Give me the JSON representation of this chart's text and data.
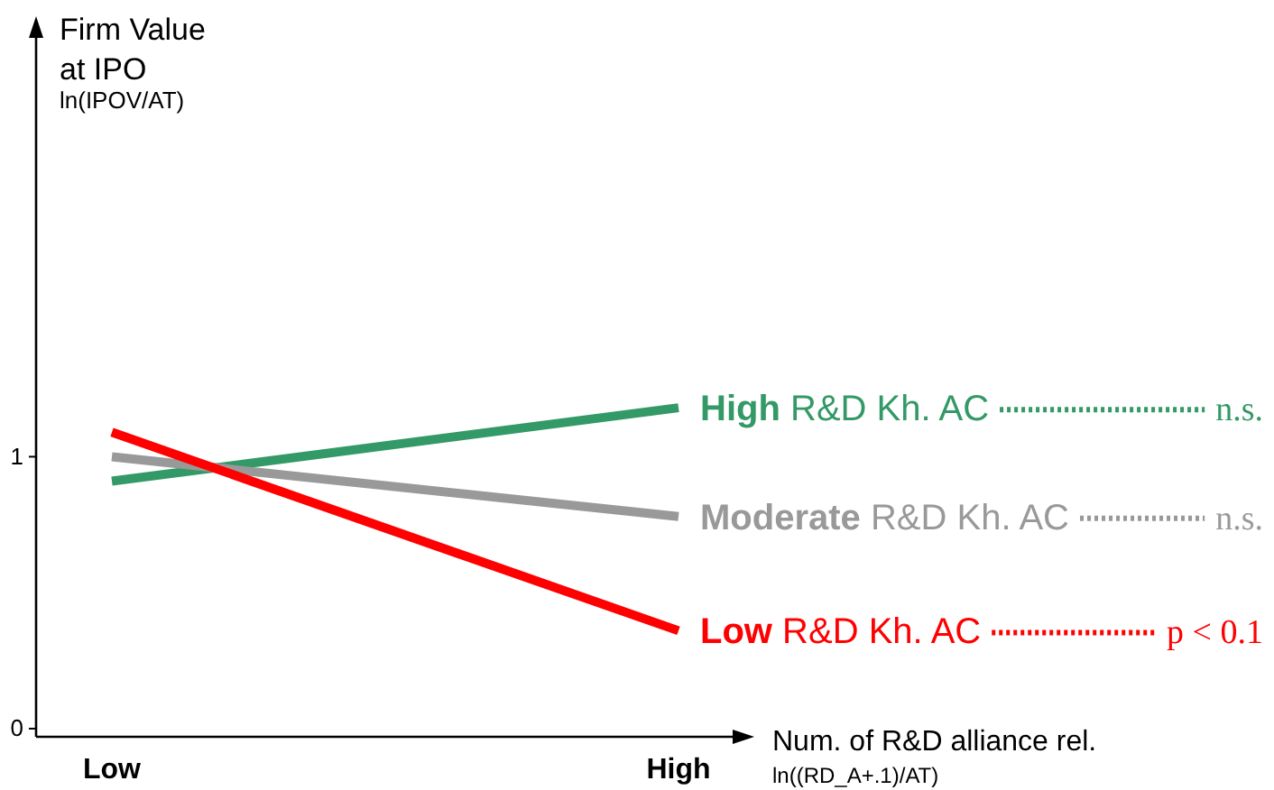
{
  "chart_data": {
    "type": "line",
    "categories": [
      "Low",
      "High"
    ],
    "ylabel": "Firm Value\nat IPO\nln(IPOV/AT)",
    "xlabel": "Num. of R&D alliance rel.\nln((RD_A+.1)/AT)",
    "ylim": [
      -0.03,
      2.6
    ],
    "yticks": [
      0,
      1
    ],
    "series": [
      {
        "name": "High R&D Kh. AC",
        "color": "#339966",
        "values": [
          0.91,
          1.18
        ]
      },
      {
        "name": "Moderate R&D Kh. AC",
        "color": "#999999",
        "values": [
          1.0,
          0.78
        ]
      },
      {
        "name": "Low R&D Kh. AC",
        "color": "#ff0000",
        "values": [
          1.09,
          0.36
        ]
      }
    ],
    "annotations": [
      "n.s.",
      "n.s.",
      "p < 0.1"
    ],
    "grid": false,
    "legend": "right",
    "marker": "none",
    "line_style": "solid"
  }
}
